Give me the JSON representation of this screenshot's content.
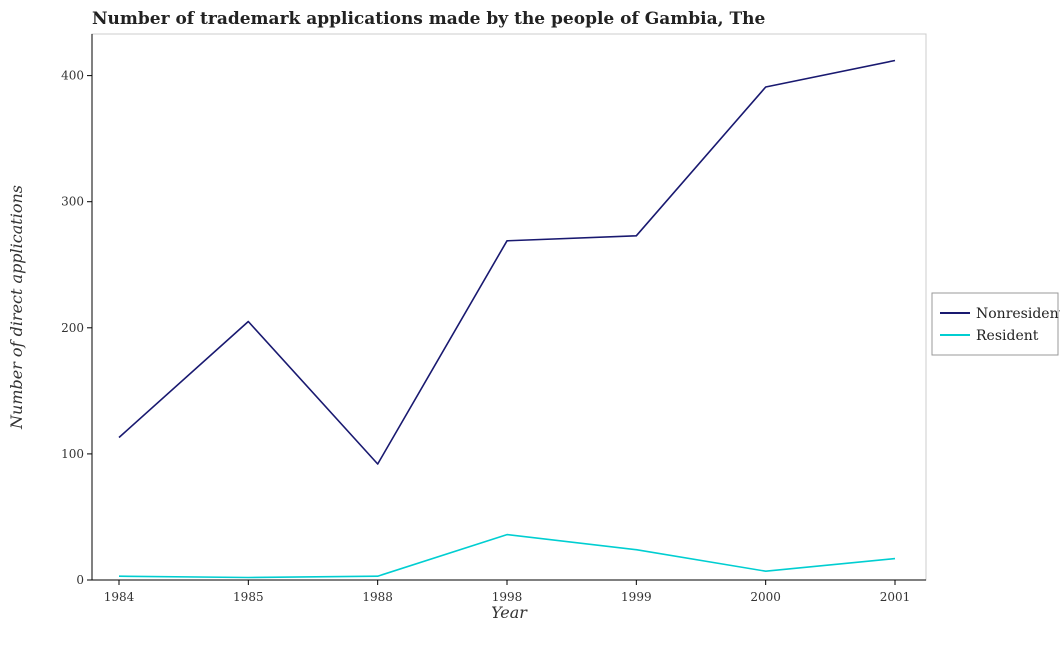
{
  "chart_data": {
    "type": "line",
    "title": "Number of trademark applications made by the people of Gambia, The",
    "xlabel": "Year",
    "ylabel": "Number of direct applications",
    "categories": [
      "1984",
      "1985",
      "1988",
      "1998",
      "1999",
      "2000",
      "2001"
    ],
    "series": [
      {
        "name": "Nonresident",
        "color": "#191970",
        "values": [
          113,
          205,
          92,
          269,
          273,
          391,
          412
        ]
      },
      {
        "name": "Resident",
        "color": "#00ced1",
        "values": [
          3,
          2,
          3,
          36,
          24,
          7,
          17
        ]
      }
    ],
    "ylim": [
      0,
      433
    ],
    "yticks": [
      0,
      100,
      200,
      300,
      400
    ],
    "grid": false,
    "legend_position": "right"
  }
}
